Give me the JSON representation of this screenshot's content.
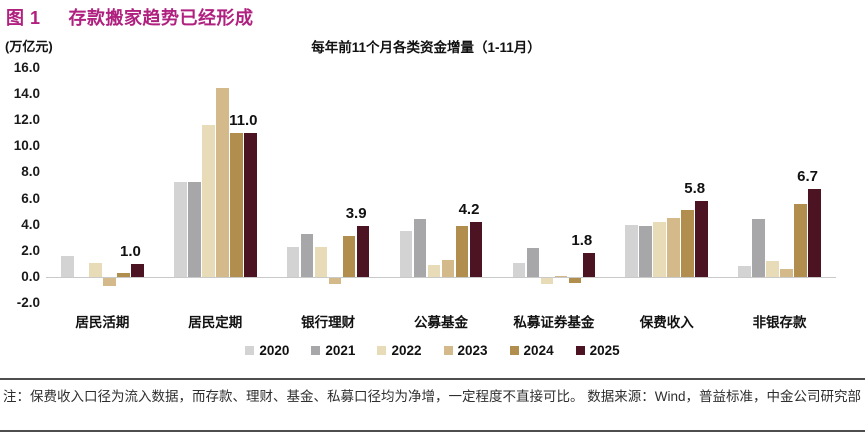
{
  "figure": {
    "label": "图 1",
    "title": "存款搬家趋势已经形成"
  },
  "chart_data": {
    "type": "bar",
    "title": "每年前11个月各类资金增量（1-11月）",
    "unit_label": "(万亿元)",
    "categories": [
      "居民活期",
      "居民定期",
      "银行理财",
      "公募基金",
      "私募证券基金",
      "保费收入",
      "非银存款"
    ],
    "series": [
      {
        "name": "2020",
        "color": "#d3d3d4",
        "values": [
          1.6,
          7.3,
          2.3,
          3.5,
          1.1,
          4.0,
          0.8
        ]
      },
      {
        "name": "2021",
        "color": "#a7a7a9",
        "values": [
          0.0,
          7.3,
          3.3,
          4.4,
          2.2,
          3.9,
          4.4
        ]
      },
      {
        "name": "2022",
        "color": "#e8dcb8",
        "values": [
          1.1,
          11.6,
          2.3,
          0.9,
          -0.5,
          4.2,
          1.2
        ]
      },
      {
        "name": "2023",
        "color": "#d4ba8a",
        "values": [
          -0.6,
          14.5,
          -0.5,
          1.3,
          0.1,
          4.5,
          0.6
        ]
      },
      {
        "name": "2024",
        "color": "#b28e4e",
        "values": [
          0.3,
          11.0,
          3.1,
          3.9,
          -0.4,
          5.1,
          5.6
        ]
      },
      {
        "name": "2025",
        "color": "#4c1422",
        "values": [
          1.0,
          11.0,
          3.9,
          4.2,
          1.8,
          5.8,
          6.7
        ]
      }
    ],
    "value_labels": {
      "series": "2025",
      "values": [
        "1.0",
        "11.0",
        "3.9",
        "4.2",
        "1.8",
        "5.8",
        "6.7"
      ]
    },
    "ylim": [
      -2,
      16
    ],
    "yticks": [
      "16.0",
      "14.0",
      "12.0",
      "10.0",
      "8.0",
      "6.0",
      "4.0",
      "2.0",
      "0.0",
      "-2.0"
    ],
    "grid": false,
    "legend_position": "bottom"
  },
  "note": {
    "text": "注：保费收入口径为流入数据，而存款、理财、基金、私募口径均为净增，一定程度不直接可比。 数据来源：Wind，普益标准，中金公司研究部"
  }
}
